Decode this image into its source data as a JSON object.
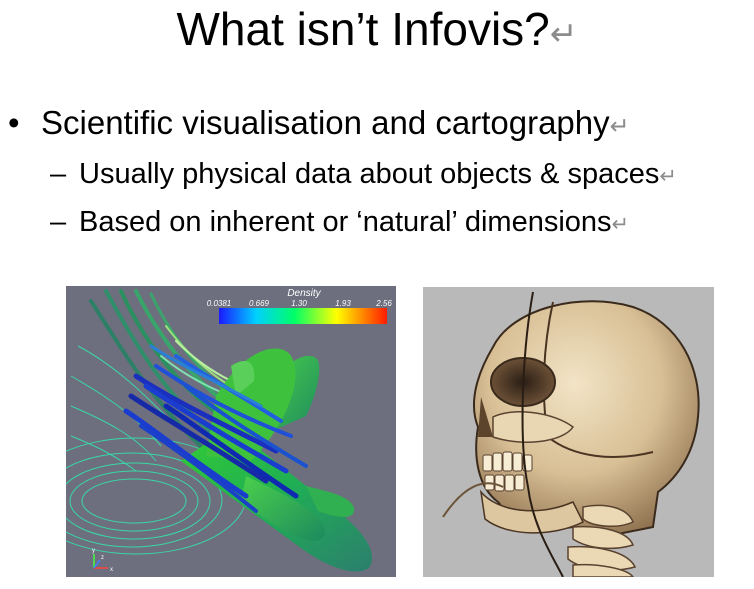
{
  "slide": {
    "title": "What isn’t Infovis?",
    "return_mark": "↵",
    "bullet_marker": "•",
    "bullet": "Scientific visualisation and cartography",
    "sub_marker": "–",
    "subbullets": [
      "Usually physical data about objects & spaces",
      "Based on inherent or ‘natural’ dimensions"
    ]
  },
  "figures": {
    "shuttle": {
      "legend_title": "Density",
      "legend_ticks": [
        "0.0381",
        "0.669",
        "1.30",
        "1.93",
        "2.56"
      ],
      "axis_labels": [
        "x",
        "y",
        "z"
      ]
    },
    "skull": {}
  },
  "colors": {
    "shuttle_background": "#6d6f7e",
    "skull_background": "#b9b9b9",
    "return_mark": "#8c8c8c"
  }
}
